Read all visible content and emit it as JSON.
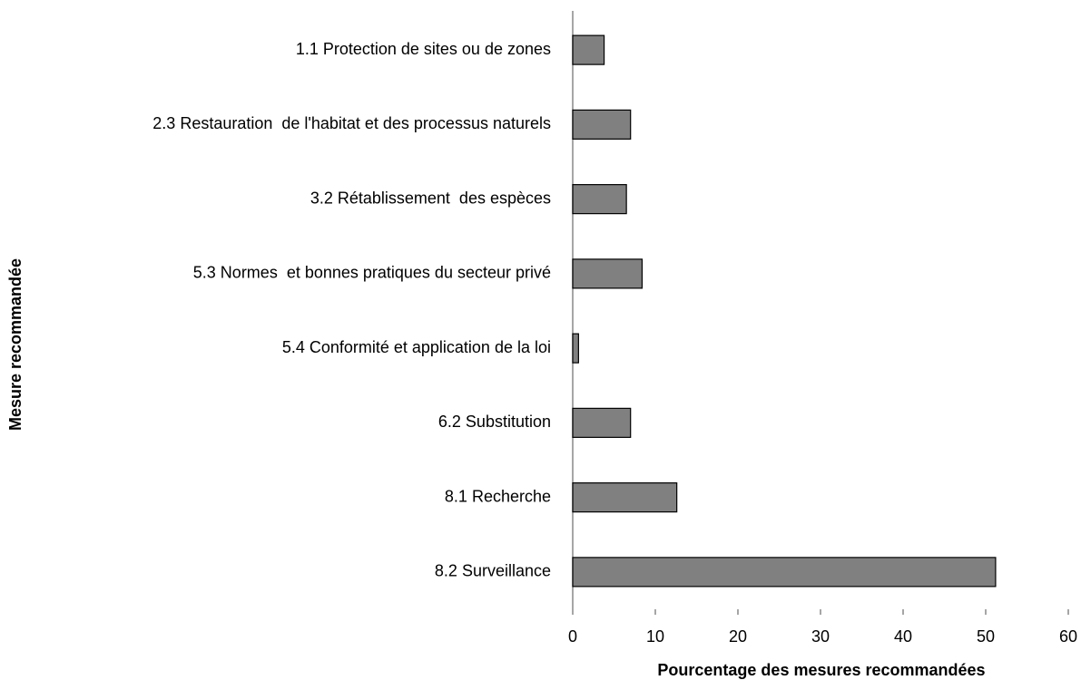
{
  "chart_data": {
    "type": "bar",
    "orientation": "horizontal",
    "x_label": "Pourcentage des mesures recommandées",
    "y_label": "Mesure recommandée",
    "categories": [
      "1.1 Protection de sites ou de zones",
      "2.3 Restauration  de l'habitat et des processus naturels",
      "3.2 Rétablissement  des espèces",
      "5.3 Normes  et bonnes pratiques du secteur privé",
      "5.4 Conformité et application de la loi",
      "6.2 Substitution",
      "8.1 Recherche",
      "8.2 Surveillance"
    ],
    "values": [
      3.8,
      7.0,
      6.5,
      8.4,
      0.7,
      7.0,
      12.6,
      51.2
    ],
    "color": "#808080",
    "xlim": [
      0,
      60
    ],
    "xticks": [
      0,
      10,
      20,
      30,
      40,
      50,
      60
    ],
    "grid": false
  }
}
